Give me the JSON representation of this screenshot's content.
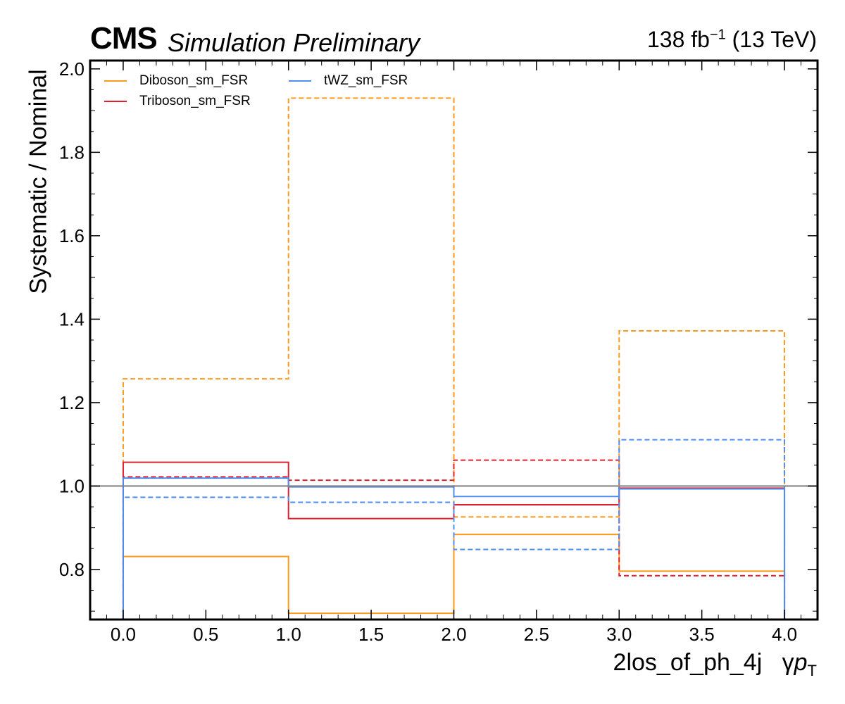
{
  "header": {
    "experiment": "CMS",
    "subtitle": "Simulation Preliminary",
    "lumi_value": "138 fb",
    "lumi_exponent": "−1",
    "lumi_energy": " (13 TeV)"
  },
  "chart_data": {
    "type": "line",
    "style": "step-histogram",
    "ylabel": "Systematic / Nominal",
    "xlabel_main": "2los_of_ph_4j",
    "xlabel_gamma": "γ",
    "xlabel_p": "p",
    "xlabel_sub": "T",
    "xlim": [
      -0.2,
      4.2
    ],
    "ylim": [
      0.68,
      2.02
    ],
    "xticks": [
      0.0,
      0.5,
      1.0,
      1.5,
      2.0,
      2.5,
      3.0,
      3.5,
      4.0
    ],
    "xtick_labels": [
      "0.0",
      "0.5",
      "1.0",
      "1.5",
      "2.0",
      "2.5",
      "3.0",
      "3.5",
      "4.0"
    ],
    "yticks": [
      0.8,
      1.0,
      1.2,
      1.4,
      1.6,
      1.8,
      2.0
    ],
    "ytick_labels": [
      "0.8",
      "1.0",
      "1.2",
      "1.4",
      "1.6",
      "1.8",
      "2.0"
    ],
    "bin_edges": [
      0,
      1,
      2,
      3,
      4
    ],
    "reference_line": 1.0,
    "grid": false,
    "legend_placement": "top-left",
    "series": [
      {
        "name": "Diboson_sm_FSR",
        "color": "#ff9a1e",
        "variation": "up",
        "dashed": true,
        "values": [
          1.257,
          1.93,
          0.926,
          1.372
        ]
      },
      {
        "name": "Diboson_sm_FSR",
        "color": "#ff9a1e",
        "variation": "down",
        "dashed": false,
        "values": [
          0.831,
          0.695,
          0.884,
          0.796
        ]
      },
      {
        "name": "Triboson_sm_FSR",
        "color": "#e0202e",
        "variation": "up",
        "dashed": false,
        "values": [
          1.057,
          0.922,
          0.955,
          0.995
        ]
      },
      {
        "name": "Triboson_sm_FSR",
        "color": "#e0202e",
        "variation": "down",
        "dashed": true,
        "values": [
          1.022,
          1.014,
          1.062,
          0.785
        ]
      },
      {
        "name": "tWZ_sm_FSR",
        "color": "#4f8fef",
        "variation": "up",
        "dashed": false,
        "values": [
          1.019,
          0.998,
          0.975,
          0.993
        ]
      },
      {
        "name": "tWZ_sm_FSR",
        "color": "#4f8fef",
        "variation": "down",
        "dashed": true,
        "values": [
          0.973,
          0.961,
          0.848,
          1.111
        ]
      }
    ],
    "legend_entries": [
      {
        "label": "Diboson_sm_FSR",
        "color": "#ff9a1e"
      },
      {
        "label": "Triboson_sm_FSR",
        "color": "#e0202e"
      },
      {
        "label": "tWZ_sm_FSR",
        "color": "#4f8fef"
      }
    ]
  }
}
